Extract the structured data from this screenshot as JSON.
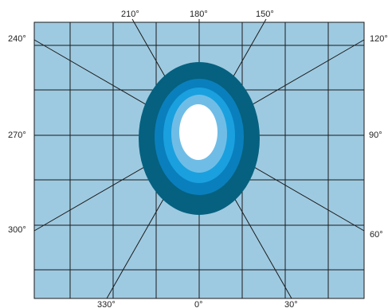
{
  "angle_labels": {
    "a210": "210°",
    "a180": "180°",
    "a150": "150°",
    "a240": "240°",
    "a120": "120°",
    "a270": "270°",
    "a90": "90°",
    "a300": "300°",
    "a60": "60°",
    "a330": "330°",
    "a0": "0°",
    "a30": "30°"
  },
  "colors": {
    "background": "#ffffff",
    "grid_fill": "#9ecae1",
    "grid_line": "#1b1b1b",
    "ring_outer": "#05617f",
    "ring_2": "#0a7fbd",
    "ring_3": "#1aa0de",
    "ring_4": "#6fbde6",
    "core": "#ffffff"
  }
}
